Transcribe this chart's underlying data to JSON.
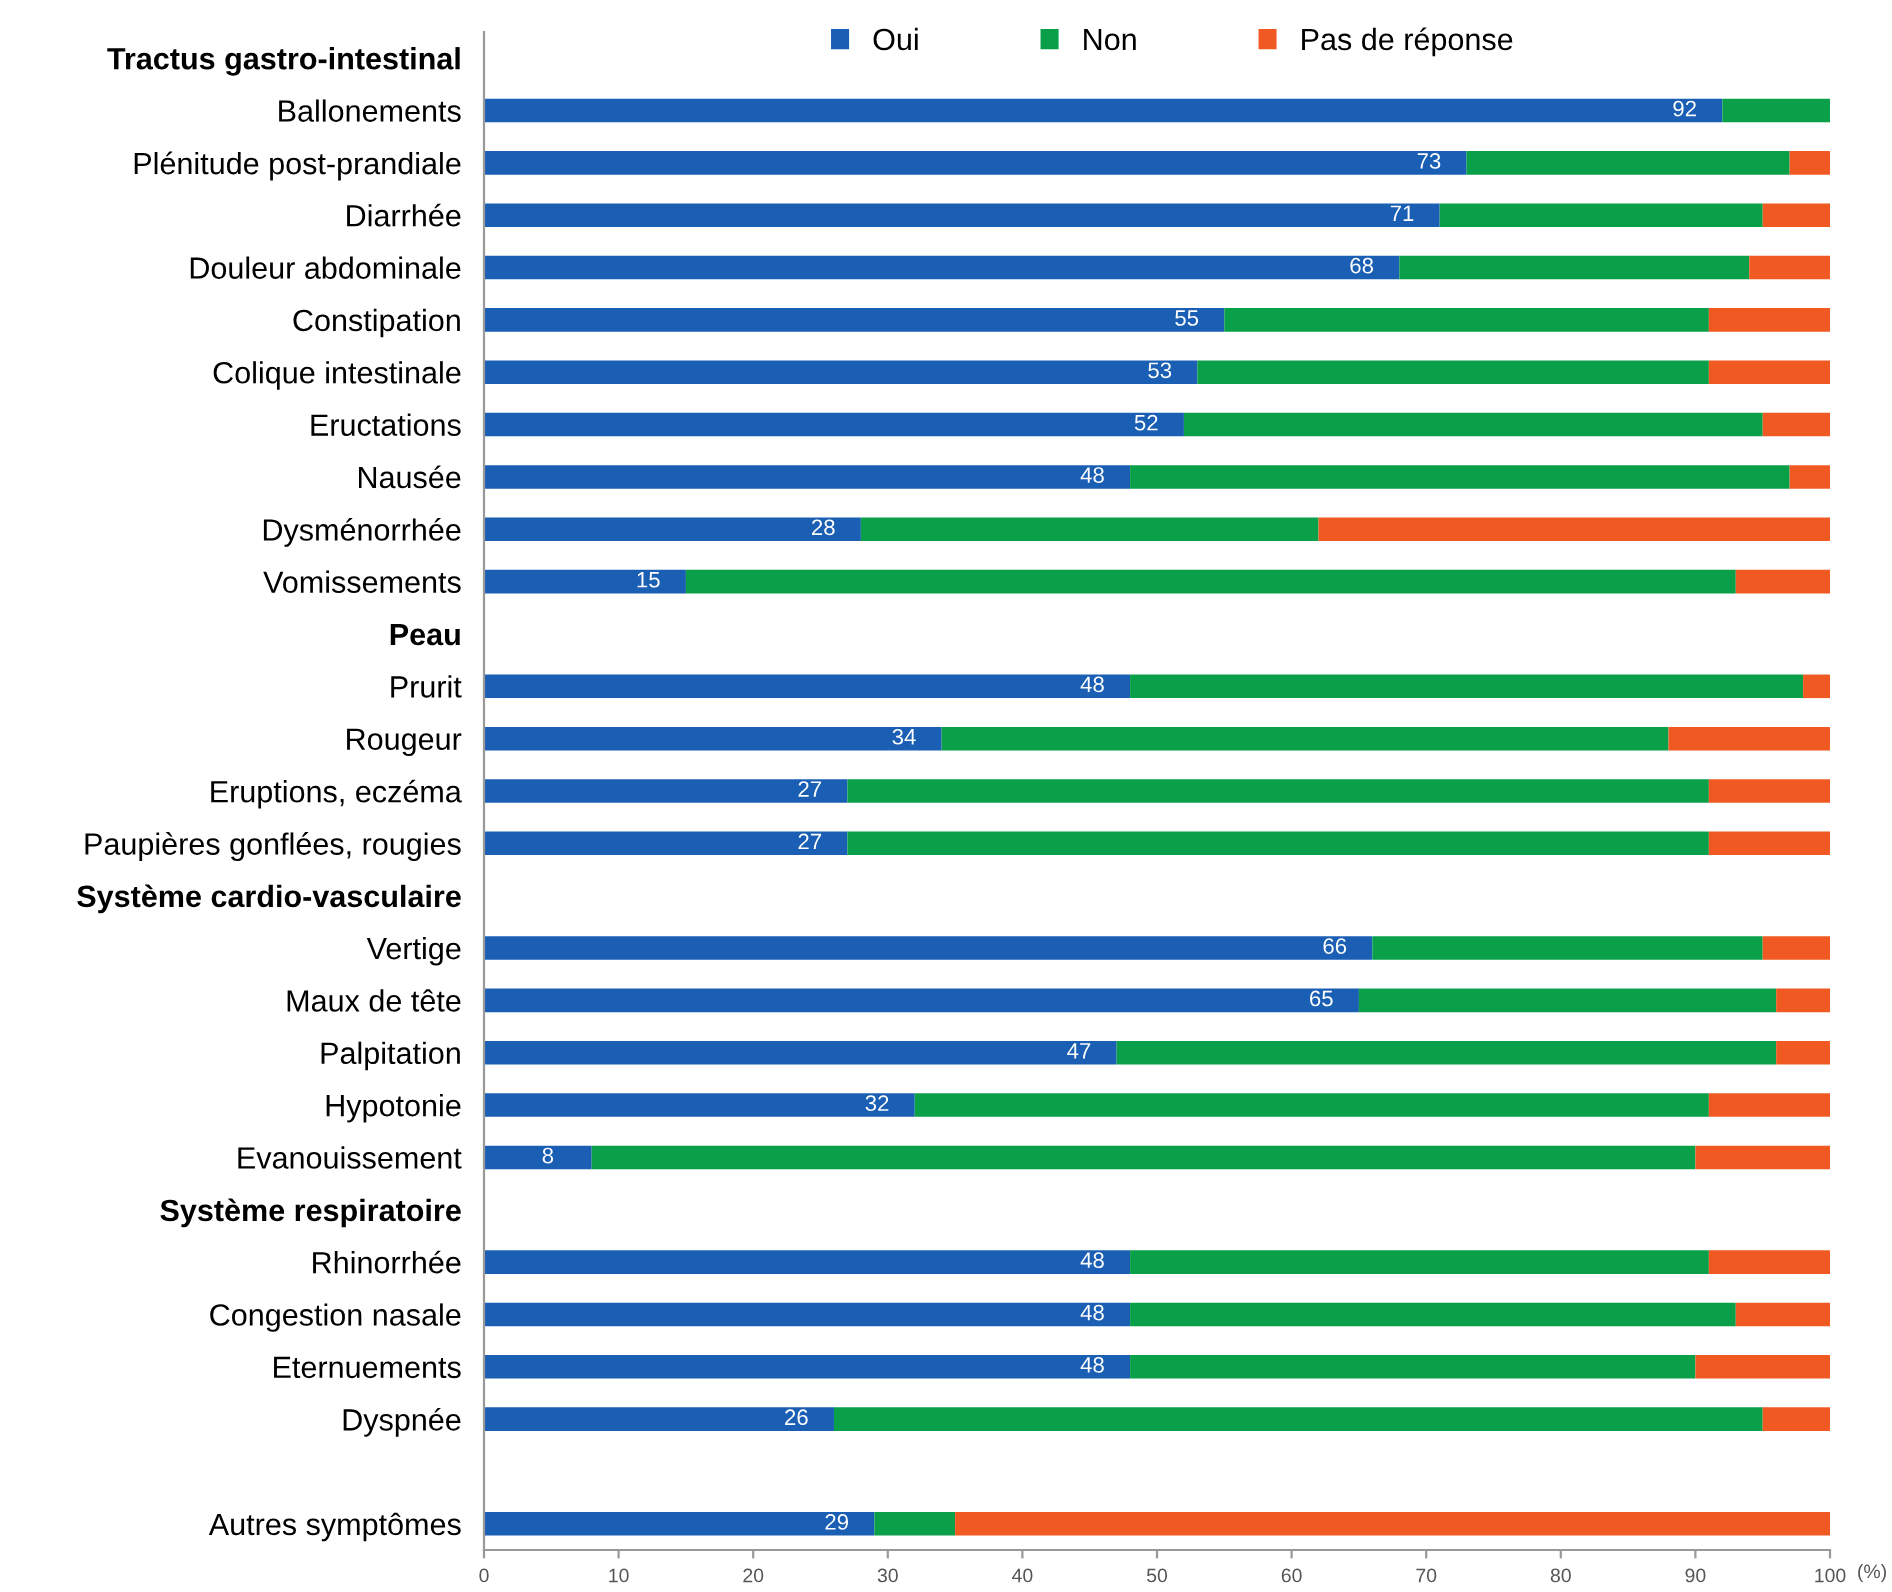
{
  "chart_data": {
    "type": "bar",
    "orientation": "horizontal",
    "stacked": true,
    "legend": "top",
    "xlabel": "(%)",
    "xlim": [
      0,
      100
    ],
    "xticks": [
      0,
      10,
      20,
      30,
      40,
      50,
      60,
      70,
      80,
      90,
      100
    ],
    "categories": [
      "Tractus gastro-intestinal",
      "Ballonements",
      "Plénitude post-prandiale",
      "Diarrhée",
      "Douleur abdominale",
      "Constipation",
      "Colique intestinale",
      "Eructations",
      "Nausée",
      "Dysménorrhée",
      "Vomissements",
      "Peau",
      "Prurit",
      "Rougeur",
      "Eruptions, eczéma",
      "Paupières gonflées, rougies",
      "Système cardio-vasculaire",
      "Vertige",
      "Maux de tête",
      "Palpitation",
      "Hypotonie",
      "Evanouissement",
      "Système respiratoire",
      "Rhinorrhée",
      "Congestion nasale",
      "Eternuements",
      "Dyspnée",
      null,
      "Autres symptômes"
    ],
    "series": [
      {
        "name": "Oui",
        "color": "#1a5fb4",
        "values": [
          null,
          92,
          73,
          71,
          68,
          55,
          53,
          52,
          48,
          28,
          15,
          null,
          48,
          34,
          27,
          27,
          null,
          66,
          65,
          47,
          32,
          8,
          null,
          48,
          48,
          48,
          26,
          null,
          29
        ],
        "value_labels": [
          null,
          "92",
          "73",
          "71",
          "68",
          "55",
          "53",
          "52",
          "48",
          "28",
          "15",
          null,
          "48",
          "34",
          "27",
          "27",
          null,
          "66",
          "65",
          "47",
          "32",
          "8",
          null,
          "48",
          "48",
          "48",
          "26",
          null,
          "29"
        ]
      },
      {
        "name": "Non",
        "color": "#0aa04a",
        "values": [
          null,
          8,
          24,
          24,
          26,
          36,
          38,
          43,
          49,
          34,
          78,
          null,
          50,
          54,
          64,
          64,
          null,
          29,
          31,
          49,
          59,
          82,
          null,
          43,
          45,
          42,
          69,
          null,
          6
        ]
      },
      {
        "name": "Pas de réponse",
        "color": "#f05a22",
        "values": [
          null,
          0,
          3,
          5,
          6,
          9,
          9,
          5,
          3,
          38,
          7,
          null,
          2,
          12,
          9,
          9,
          null,
          5,
          4,
          4,
          9,
          10,
          null,
          9,
          7,
          10,
          5,
          null,
          65
        ]
      }
    ]
  }
}
